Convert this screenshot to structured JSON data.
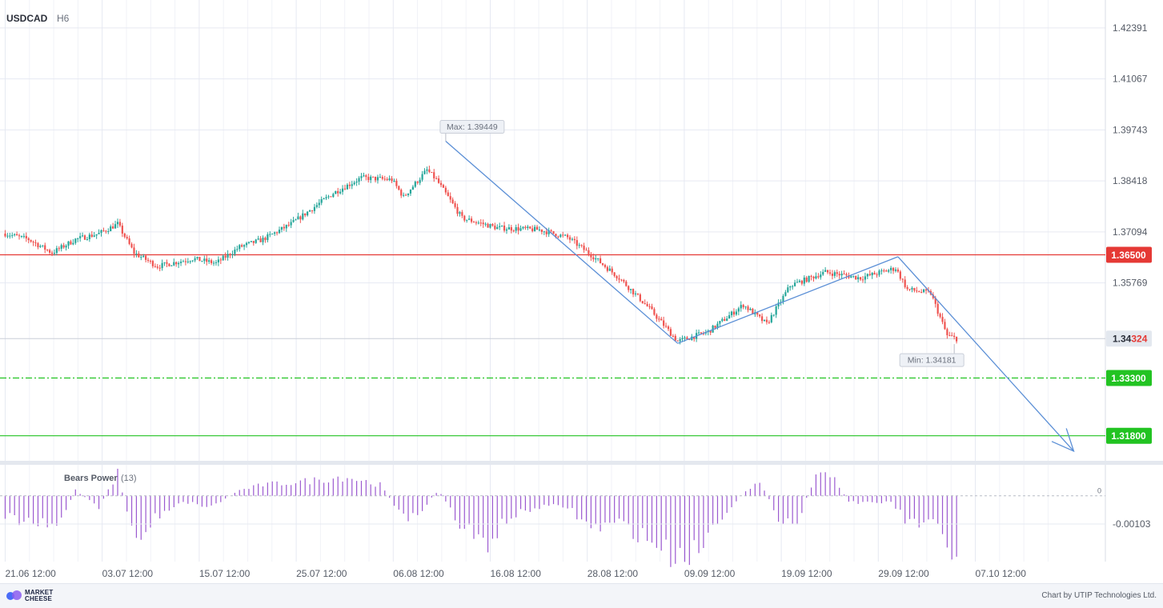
{
  "header": {
    "symbol": "USDCAD",
    "timeframe": "H6"
  },
  "colors": {
    "bull": "#26a69a",
    "bear": "#ef5350",
    "grid": "#e6e9f2",
    "resistance": "#e53935",
    "support": "#22c322",
    "trendline": "#5b8fd6",
    "indicator": "#9b59d0",
    "price_tag": "#e3e8ef"
  },
  "chart_data": [
    {
      "type": "candlestick",
      "symbol": "USDCAD",
      "timeframe": "H6",
      "x_ticks": [
        "21.06 12:00",
        "03.07 12:00",
        "15.07 12:00",
        "25.07 12:00",
        "06.08 12:00",
        "16.08 12:00",
        "28.08 12:00",
        "09.09 12:00",
        "19.09 12:00",
        "29.09 12:00",
        "07.10 12:00"
      ],
      "y_ticks": [
        "1.42391",
        "1.41067",
        "1.39743",
        "1.38418",
        "1.37094",
        "1.35769"
      ],
      "ylim": [
        1.3115,
        1.4295
      ],
      "grid": true,
      "price_path": [
        {
          "i": 0,
          "p": 1.3705
        },
        {
          "i": 10,
          "p": 1.369
        },
        {
          "i": 20,
          "p": 1.3655
        },
        {
          "i": 30,
          "p": 1.369
        },
        {
          "i": 40,
          "p": 1.3705
        },
        {
          "i": 48,
          "p": 1.373
        },
        {
          "i": 55,
          "p": 1.3655
        },
        {
          "i": 65,
          "p": 1.362
        },
        {
          "i": 80,
          "p": 1.364
        },
        {
          "i": 90,
          "p": 1.3628
        },
        {
          "i": 100,
          "p": 1.367
        },
        {
          "i": 110,
          "p": 1.369
        },
        {
          "i": 122,
          "p": 1.373
        },
        {
          "i": 140,
          "p": 1.381
        },
        {
          "i": 152,
          "p": 1.385
        },
        {
          "i": 165,
          "p": 1.3845
        },
        {
          "i": 170,
          "p": 1.38
        },
        {
          "i": 180,
          "p": 1.387
        },
        {
          "i": 184,
          "p": 1.3845
        },
        {
          "i": 195,
          "p": 1.3745
        },
        {
          "i": 210,
          "p": 1.372
        },
        {
          "i": 228,
          "p": 1.3715
        },
        {
          "i": 240,
          "p": 1.3695
        },
        {
          "i": 250,
          "p": 1.365
        },
        {
          "i": 262,
          "p": 1.359
        },
        {
          "i": 275,
          "p": 1.351
        },
        {
          "i": 287,
          "p": 1.3425
        },
        {
          "i": 300,
          "p": 1.345
        },
        {
          "i": 315,
          "p": 1.352
        },
        {
          "i": 325,
          "p": 1.347
        },
        {
          "i": 335,
          "p": 1.357
        },
        {
          "i": 350,
          "p": 1.3605
        },
        {
          "i": 365,
          "p": 1.359
        },
        {
          "i": 380,
          "p": 1.3615
        },
        {
          "i": 385,
          "p": 1.356
        },
        {
          "i": 395,
          "p": 1.355
        },
        {
          "i": 402,
          "p": 1.344
        },
        {
          "i": 406,
          "p": 1.3432
        }
      ],
      "extremes": [
        {
          "label": "Max: 1.39449",
          "value": 1.39449,
          "i": 188
        },
        {
          "label": "Min: 1.34181",
          "value": 1.34181,
          "i": 405
        }
      ],
      "levels": [
        {
          "label": "1.36500",
          "value": 1.365,
          "style": "solid",
          "role": "resistance"
        },
        {
          "label": "1.33300",
          "value": 1.333,
          "style": "dash-dot",
          "role": "support"
        },
        {
          "label": "1.31800",
          "value": 1.318,
          "style": "solid",
          "role": "support"
        }
      ],
      "current_price": {
        "prefix": "1.34",
        "suffix": "324",
        "value": 1.34324
      },
      "trendlines": [
        {
          "points": [
            {
              "i": 188,
              "p": 1.39449
            },
            {
              "i": 287,
              "p": 1.342
            }
          ]
        },
        {
          "points": [
            {
              "i": 287,
              "p": 1.342
            },
            {
              "i": 381,
              "p": 1.3645
            }
          ]
        },
        {
          "points": [
            {
              "i": 381,
              "p": 1.3645
            },
            {
              "i": 456,
              "p": 1.314
            }
          ],
          "arrow": true
        }
      ]
    },
    {
      "type": "bar",
      "title": "Bears Power",
      "param": "(13)",
      "zero_label": "0",
      "y_tick": "-0.00103",
      "y_tick_value": -0.00103,
      "ylim": [
        -0.0024,
        0.0011
      ],
      "profile": [
        {
          "i": 0,
          "v": -0.0008
        },
        {
          "i": 12,
          "v": -0.001
        },
        {
          "i": 22,
          "v": -0.0012
        },
        {
          "i": 30,
          "v": 0.0002
        },
        {
          "i": 40,
          "v": -0.0004
        },
        {
          "i": 48,
          "v": 0.0008
        },
        {
          "i": 56,
          "v": -0.0018
        },
        {
          "i": 64,
          "v": -0.0008
        },
        {
          "i": 75,
          "v": -0.0002
        },
        {
          "i": 88,
          "v": -0.0004
        },
        {
          "i": 100,
          "v": 0.0002
        },
        {
          "i": 110,
          "v": 0.0004
        },
        {
          "i": 125,
          "v": 0.0005
        },
        {
          "i": 145,
          "v": 0.0007
        },
        {
          "i": 160,
          "v": 0.0004
        },
        {
          "i": 172,
          "v": -0.001
        },
        {
          "i": 185,
          "v": 0.0002
        },
        {
          "i": 195,
          "v": -0.0012
        },
        {
          "i": 205,
          "v": -0.0018
        },
        {
          "i": 215,
          "v": -0.0008
        },
        {
          "i": 228,
          "v": -0.0004
        },
        {
          "i": 240,
          "v": -0.0004
        },
        {
          "i": 250,
          "v": -0.0012
        },
        {
          "i": 262,
          "v": -0.001
        },
        {
          "i": 275,
          "v": -0.0016
        },
        {
          "i": 285,
          "v": -0.0022
        },
        {
          "i": 295,
          "v": -0.002
        },
        {
          "i": 305,
          "v": -0.0008
        },
        {
          "i": 315,
          "v": 0.0001
        },
        {
          "i": 322,
          "v": 0.0006
        },
        {
          "i": 330,
          "v": -0.0008
        },
        {
          "i": 338,
          "v": -0.001
        },
        {
          "i": 345,
          "v": 0.0006
        },
        {
          "i": 352,
          "v": 0.0008
        },
        {
          "i": 360,
          "v": -0.0002
        },
        {
          "i": 370,
          "v": -0.0003
        },
        {
          "i": 378,
          "v": -0.0002
        },
        {
          "i": 385,
          "v": -0.001
        },
        {
          "i": 393,
          "v": -0.001
        },
        {
          "i": 398,
          "v": -0.0012
        },
        {
          "i": 403,
          "v": -0.0022
        },
        {
          "i": 406,
          "v": -0.002
        }
      ]
    }
  ],
  "footer": {
    "logo_line1": "MARKET",
    "logo_line2": "CHEESE",
    "credit": "Chart by UTIP Technologies Ltd."
  }
}
